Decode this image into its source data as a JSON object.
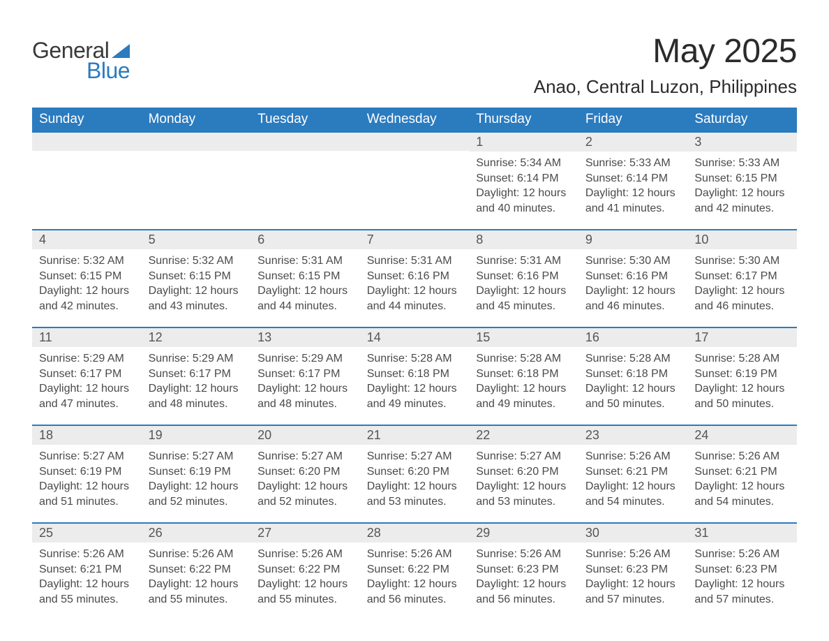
{
  "brand": {
    "general": "General",
    "blue": "Blue",
    "accent_color": "#2b7bbf"
  },
  "header": {
    "title": "May 2025",
    "location": "Anao, Central Luzon, Philippines"
  },
  "calendar": {
    "columns": [
      "Sunday",
      "Monday",
      "Tuesday",
      "Wednesday",
      "Thursday",
      "Friday",
      "Saturday"
    ],
    "header_bg": "#2b7bbf",
    "header_fg": "#ffffff",
    "daynum_bg": "#ececec",
    "daynum_border": "#2b7bbf",
    "text_color": "#4a4a4a",
    "weeks": [
      [
        null,
        null,
        null,
        null,
        {
          "num": "1",
          "sunrise": "Sunrise: 5:34 AM",
          "sunset": "Sunset: 6:14 PM",
          "daylight1": "Daylight: 12 hours",
          "daylight2": "and 40 minutes."
        },
        {
          "num": "2",
          "sunrise": "Sunrise: 5:33 AM",
          "sunset": "Sunset: 6:14 PM",
          "daylight1": "Daylight: 12 hours",
          "daylight2": "and 41 minutes."
        },
        {
          "num": "3",
          "sunrise": "Sunrise: 5:33 AM",
          "sunset": "Sunset: 6:15 PM",
          "daylight1": "Daylight: 12 hours",
          "daylight2": "and 42 minutes."
        }
      ],
      [
        {
          "num": "4",
          "sunrise": "Sunrise: 5:32 AM",
          "sunset": "Sunset: 6:15 PM",
          "daylight1": "Daylight: 12 hours",
          "daylight2": "and 42 minutes."
        },
        {
          "num": "5",
          "sunrise": "Sunrise: 5:32 AM",
          "sunset": "Sunset: 6:15 PM",
          "daylight1": "Daylight: 12 hours",
          "daylight2": "and 43 minutes."
        },
        {
          "num": "6",
          "sunrise": "Sunrise: 5:31 AM",
          "sunset": "Sunset: 6:15 PM",
          "daylight1": "Daylight: 12 hours",
          "daylight2": "and 44 minutes."
        },
        {
          "num": "7",
          "sunrise": "Sunrise: 5:31 AM",
          "sunset": "Sunset: 6:16 PM",
          "daylight1": "Daylight: 12 hours",
          "daylight2": "and 44 minutes."
        },
        {
          "num": "8",
          "sunrise": "Sunrise: 5:31 AM",
          "sunset": "Sunset: 6:16 PM",
          "daylight1": "Daylight: 12 hours",
          "daylight2": "and 45 minutes."
        },
        {
          "num": "9",
          "sunrise": "Sunrise: 5:30 AM",
          "sunset": "Sunset: 6:16 PM",
          "daylight1": "Daylight: 12 hours",
          "daylight2": "and 46 minutes."
        },
        {
          "num": "10",
          "sunrise": "Sunrise: 5:30 AM",
          "sunset": "Sunset: 6:17 PM",
          "daylight1": "Daylight: 12 hours",
          "daylight2": "and 46 minutes."
        }
      ],
      [
        {
          "num": "11",
          "sunrise": "Sunrise: 5:29 AM",
          "sunset": "Sunset: 6:17 PM",
          "daylight1": "Daylight: 12 hours",
          "daylight2": "and 47 minutes."
        },
        {
          "num": "12",
          "sunrise": "Sunrise: 5:29 AM",
          "sunset": "Sunset: 6:17 PM",
          "daylight1": "Daylight: 12 hours",
          "daylight2": "and 48 minutes."
        },
        {
          "num": "13",
          "sunrise": "Sunrise: 5:29 AM",
          "sunset": "Sunset: 6:17 PM",
          "daylight1": "Daylight: 12 hours",
          "daylight2": "and 48 minutes."
        },
        {
          "num": "14",
          "sunrise": "Sunrise: 5:28 AM",
          "sunset": "Sunset: 6:18 PM",
          "daylight1": "Daylight: 12 hours",
          "daylight2": "and 49 minutes."
        },
        {
          "num": "15",
          "sunrise": "Sunrise: 5:28 AM",
          "sunset": "Sunset: 6:18 PM",
          "daylight1": "Daylight: 12 hours",
          "daylight2": "and 49 minutes."
        },
        {
          "num": "16",
          "sunrise": "Sunrise: 5:28 AM",
          "sunset": "Sunset: 6:18 PM",
          "daylight1": "Daylight: 12 hours",
          "daylight2": "and 50 minutes."
        },
        {
          "num": "17",
          "sunrise": "Sunrise: 5:28 AM",
          "sunset": "Sunset: 6:19 PM",
          "daylight1": "Daylight: 12 hours",
          "daylight2": "and 50 minutes."
        }
      ],
      [
        {
          "num": "18",
          "sunrise": "Sunrise: 5:27 AM",
          "sunset": "Sunset: 6:19 PM",
          "daylight1": "Daylight: 12 hours",
          "daylight2": "and 51 minutes."
        },
        {
          "num": "19",
          "sunrise": "Sunrise: 5:27 AM",
          "sunset": "Sunset: 6:19 PM",
          "daylight1": "Daylight: 12 hours",
          "daylight2": "and 52 minutes."
        },
        {
          "num": "20",
          "sunrise": "Sunrise: 5:27 AM",
          "sunset": "Sunset: 6:20 PM",
          "daylight1": "Daylight: 12 hours",
          "daylight2": "and 52 minutes."
        },
        {
          "num": "21",
          "sunrise": "Sunrise: 5:27 AM",
          "sunset": "Sunset: 6:20 PM",
          "daylight1": "Daylight: 12 hours",
          "daylight2": "and 53 minutes."
        },
        {
          "num": "22",
          "sunrise": "Sunrise: 5:27 AM",
          "sunset": "Sunset: 6:20 PM",
          "daylight1": "Daylight: 12 hours",
          "daylight2": "and 53 minutes."
        },
        {
          "num": "23",
          "sunrise": "Sunrise: 5:26 AM",
          "sunset": "Sunset: 6:21 PM",
          "daylight1": "Daylight: 12 hours",
          "daylight2": "and 54 minutes."
        },
        {
          "num": "24",
          "sunrise": "Sunrise: 5:26 AM",
          "sunset": "Sunset: 6:21 PM",
          "daylight1": "Daylight: 12 hours",
          "daylight2": "and 54 minutes."
        }
      ],
      [
        {
          "num": "25",
          "sunrise": "Sunrise: 5:26 AM",
          "sunset": "Sunset: 6:21 PM",
          "daylight1": "Daylight: 12 hours",
          "daylight2": "and 55 minutes."
        },
        {
          "num": "26",
          "sunrise": "Sunrise: 5:26 AM",
          "sunset": "Sunset: 6:22 PM",
          "daylight1": "Daylight: 12 hours",
          "daylight2": "and 55 minutes."
        },
        {
          "num": "27",
          "sunrise": "Sunrise: 5:26 AM",
          "sunset": "Sunset: 6:22 PM",
          "daylight1": "Daylight: 12 hours",
          "daylight2": "and 55 minutes."
        },
        {
          "num": "28",
          "sunrise": "Sunrise: 5:26 AM",
          "sunset": "Sunset: 6:22 PM",
          "daylight1": "Daylight: 12 hours",
          "daylight2": "and 56 minutes."
        },
        {
          "num": "29",
          "sunrise": "Sunrise: 5:26 AM",
          "sunset": "Sunset: 6:23 PM",
          "daylight1": "Daylight: 12 hours",
          "daylight2": "and 56 minutes."
        },
        {
          "num": "30",
          "sunrise": "Sunrise: 5:26 AM",
          "sunset": "Sunset: 6:23 PM",
          "daylight1": "Daylight: 12 hours",
          "daylight2": "and 57 minutes."
        },
        {
          "num": "31",
          "sunrise": "Sunrise: 5:26 AM",
          "sunset": "Sunset: 6:23 PM",
          "daylight1": "Daylight: 12 hours",
          "daylight2": "and 57 minutes."
        }
      ]
    ]
  }
}
